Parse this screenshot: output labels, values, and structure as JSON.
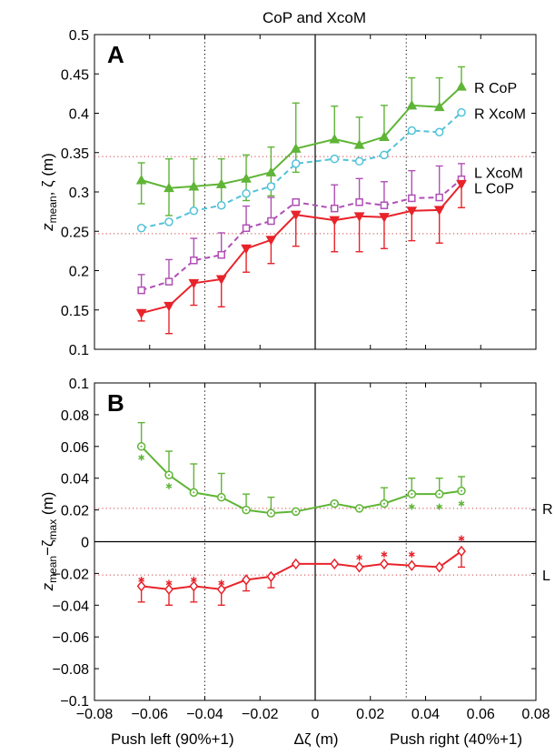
{
  "figure_title": "CoP and XcoM",
  "bottom_labels": {
    "left": "Push left (90%+1)",
    "center": "Δζ (m)",
    "right": "Push right (40%+1)"
  },
  "colors": {
    "green": "#5fb536",
    "cyan": "#52c3d8",
    "magenta": "#b04fb5",
    "red": "#e8232a",
    "refline": "#d04040"
  },
  "chart_data": [
    {
      "panel": "A",
      "type": "line",
      "ylabel_main": "z",
      "ylabel_sub": "mean",
      "ylabel_rest": ", ζ (m)",
      "xlim": [
        -0.08,
        0.08
      ],
      "ylim": [
        0.1,
        0.5
      ],
      "xticks": [
        -0.08,
        -0.06,
        -0.04,
        -0.02,
        0,
        0.02,
        0.04,
        0.06,
        0.08
      ],
      "yticks": [
        0.1,
        0.15,
        0.2,
        0.25,
        0.3,
        0.35,
        0.4,
        0.45,
        0.5
      ],
      "ytick_labels": [
        "0.1",
        "0.15",
        "0.2",
        "0.25",
        "0.3",
        "0.35",
        "0.4",
        "0.45",
        "0.5"
      ],
      "vlines_dotted": [
        -0.04,
        0.033
      ],
      "hlines_dotted": [
        0.345,
        0.247
      ],
      "x": [
        -0.063,
        -0.053,
        -0.044,
        -0.034,
        -0.025,
        -0.016,
        -0.007,
        0.007,
        0.016,
        0.025,
        0.035,
        0.045,
        0.053
      ],
      "series": [
        {
          "name": "R CoP",
          "color_key": "green",
          "marker": "triangle-up",
          "dash": false,
          "values": [
            0.315,
            0.305,
            0.307,
            0.31,
            0.317,
            0.325,
            0.355,
            0.367,
            0.36,
            0.37,
            0.41,
            0.408,
            0.434
          ],
          "err_up": [
            0.022,
            0.037,
            0.035,
            0.032,
            0.03,
            0.032,
            0.058,
            0.042,
            0.035,
            0.04,
            0.035,
            0.037,
            0.025
          ],
          "err_dn": [
            0.03,
            0.035,
            0.032,
            0.03,
            0.028,
            0.03,
            0.03,
            0.0,
            0.0,
            0.0,
            0.0,
            0.0,
            0.0
          ]
        },
        {
          "name": "R XcoM",
          "color_key": "cyan",
          "marker": "circle",
          "dash": true,
          "values": [
            0.254,
            0.262,
            0.276,
            0.283,
            0.298,
            0.307,
            0.336,
            0.342,
            0.339,
            0.347,
            0.378,
            0.376,
            0.401
          ],
          "err_up": [
            0.0,
            0.0,
            0.0,
            0.0,
            0.0,
            0.0,
            0.0,
            0.0,
            0.0,
            0.0,
            0.0,
            0.0,
            0.0
          ],
          "err_dn": [
            0.0,
            0.0,
            0.0,
            0.0,
            0.0,
            0.0,
            0.0,
            0.0,
            0.0,
            0.0,
            0.0,
            0.0,
            0.0
          ]
        },
        {
          "name": "L XcoM",
          "color_key": "magenta",
          "marker": "square",
          "dash": true,
          "values": [
            0.175,
            0.186,
            0.213,
            0.22,
            0.254,
            0.263,
            0.287,
            0.279,
            0.287,
            0.283,
            0.292,
            0.293,
            0.316
          ],
          "err_up": [
            0.02,
            0.028,
            0.028,
            0.028,
            0.028,
            0.03,
            0.0,
            0.03,
            0.03,
            0.03,
            0.035,
            0.04,
            0.02
          ],
          "err_dn": [
            0.0,
            0.0,
            0.0,
            0.0,
            0.0,
            0.0,
            0.0,
            0.0,
            0.0,
            0.0,
            0.0,
            0.0,
            0.0
          ]
        },
        {
          "name": "L CoP",
          "color_key": "red",
          "marker": "triangle-down",
          "dash": false,
          "values": [
            0.146,
            0.155,
            0.184,
            0.189,
            0.228,
            0.239,
            0.271,
            0.264,
            0.269,
            0.268,
            0.276,
            0.277,
            0.31
          ],
          "err_up": [
            0.0,
            0.0,
            0.0,
            0.0,
            0.0,
            0.0,
            0.0,
            0.0,
            0.0,
            0.0,
            0.0,
            0.0,
            0.0
          ],
          "err_dn": [
            0.01,
            0.035,
            0.028,
            0.035,
            0.03,
            0.03,
            0.04,
            0.04,
            0.045,
            0.04,
            0.038,
            0.042,
            0.03
          ]
        }
      ],
      "legend": [
        {
          "text": "R CoP",
          "y": 0.433
        },
        {
          "text": "R XcoM",
          "y": 0.4
        },
        {
          "text": "L XcoM",
          "y": 0.325
        },
        {
          "text": "L CoP",
          "y": 0.305
        }
      ]
    },
    {
      "panel": "B",
      "type": "line",
      "ylabel_main": "z",
      "ylabel_sub1": "mean",
      "ylabel_mid": "−ζ",
      "ylabel_sub2": "max",
      "ylabel_rest": " (m)",
      "xlim": [
        -0.08,
        0.08
      ],
      "ylim": [
        -0.1,
        0.1
      ],
      "xticks": [
        -0.08,
        -0.06,
        -0.04,
        -0.02,
        0,
        0.02,
        0.04,
        0.06,
        0.08
      ],
      "xtick_labels": [
        "−0.08",
        "−0.06",
        "−0.04",
        "−0.02",
        "0",
        "0.02",
        "0.04",
        "0.06",
        "0.08"
      ],
      "yticks": [
        -0.1,
        -0.08,
        -0.06,
        -0.04,
        -0.02,
        0,
        0.02,
        0.04,
        0.06,
        0.08,
        0.1
      ],
      "ytick_labels": [
        "−0.1",
        "−0.08",
        "−0.06",
        "−0.04",
        "−0.02",
        "0",
        "0.02",
        "0.04",
        "0.06",
        "0.08",
        "0.1"
      ],
      "vlines_dotted": [
        -0.04,
        0.033
      ],
      "hlines_dotted": [
        0.021,
        -0.021
      ],
      "x": [
        -0.063,
        -0.053,
        -0.044,
        -0.034,
        -0.025,
        -0.016,
        -0.007,
        0.007,
        0.016,
        0.025,
        0.035,
        0.045,
        0.053
      ],
      "series": [
        {
          "name": "R",
          "color_key": "green",
          "marker": "circle-dot",
          "dash": false,
          "values": [
            0.06,
            0.042,
            0.031,
            0.028,
            0.02,
            0.018,
            0.019,
            0.024,
            0.021,
            0.024,
            0.03,
            0.03,
            0.032
          ],
          "err_up": [
            0.015,
            0.015,
            0.018,
            0.015,
            0.01,
            0.01,
            0.0,
            0.0,
            0.0,
            0.01,
            0.01,
            0.01,
            0.009
          ],
          "err_dn": [
            0.0,
            0.0,
            0.0,
            0.0,
            0.0,
            0.0,
            0.0,
            0.0,
            0.0,
            0.0,
            0.0,
            0.0,
            0.0
          ],
          "star_idx": [
            0,
            1,
            10,
            11,
            12
          ],
          "star_values": [
            0.053,
            0.035,
            0.022,
            0.022,
            0.024
          ]
        },
        {
          "name": "L",
          "color_key": "red",
          "marker": "diamond",
          "dash": false,
          "values": [
            -0.028,
            -0.03,
            -0.028,
            -0.03,
            -0.024,
            -0.022,
            -0.014,
            -0.014,
            -0.016,
            -0.014,
            -0.015,
            -0.016,
            -0.006
          ],
          "err_up": [
            0.0,
            0.0,
            0.0,
            0.0,
            0.0,
            0.0,
            0.0,
            0.0,
            0.0,
            0.0,
            0.0,
            0.0,
            0.0
          ],
          "err_dn": [
            0.01,
            0.01,
            0.01,
            0.01,
            0.007,
            0.007,
            0.0,
            0.0,
            0.0,
            0.0,
            0.0,
            0.0,
            0.01
          ],
          "star_idx": [
            0,
            1,
            2,
            3,
            8,
            9,
            10,
            12
          ],
          "star_values": [
            -0.024,
            -0.026,
            -0.024,
            -0.026,
            -0.01,
            -0.008,
            -0.008,
            0.002
          ]
        }
      ],
      "side_labels": [
        {
          "text": "R",
          "y": 0.021
        },
        {
          "text": "L",
          "y": -0.021
        }
      ]
    }
  ]
}
